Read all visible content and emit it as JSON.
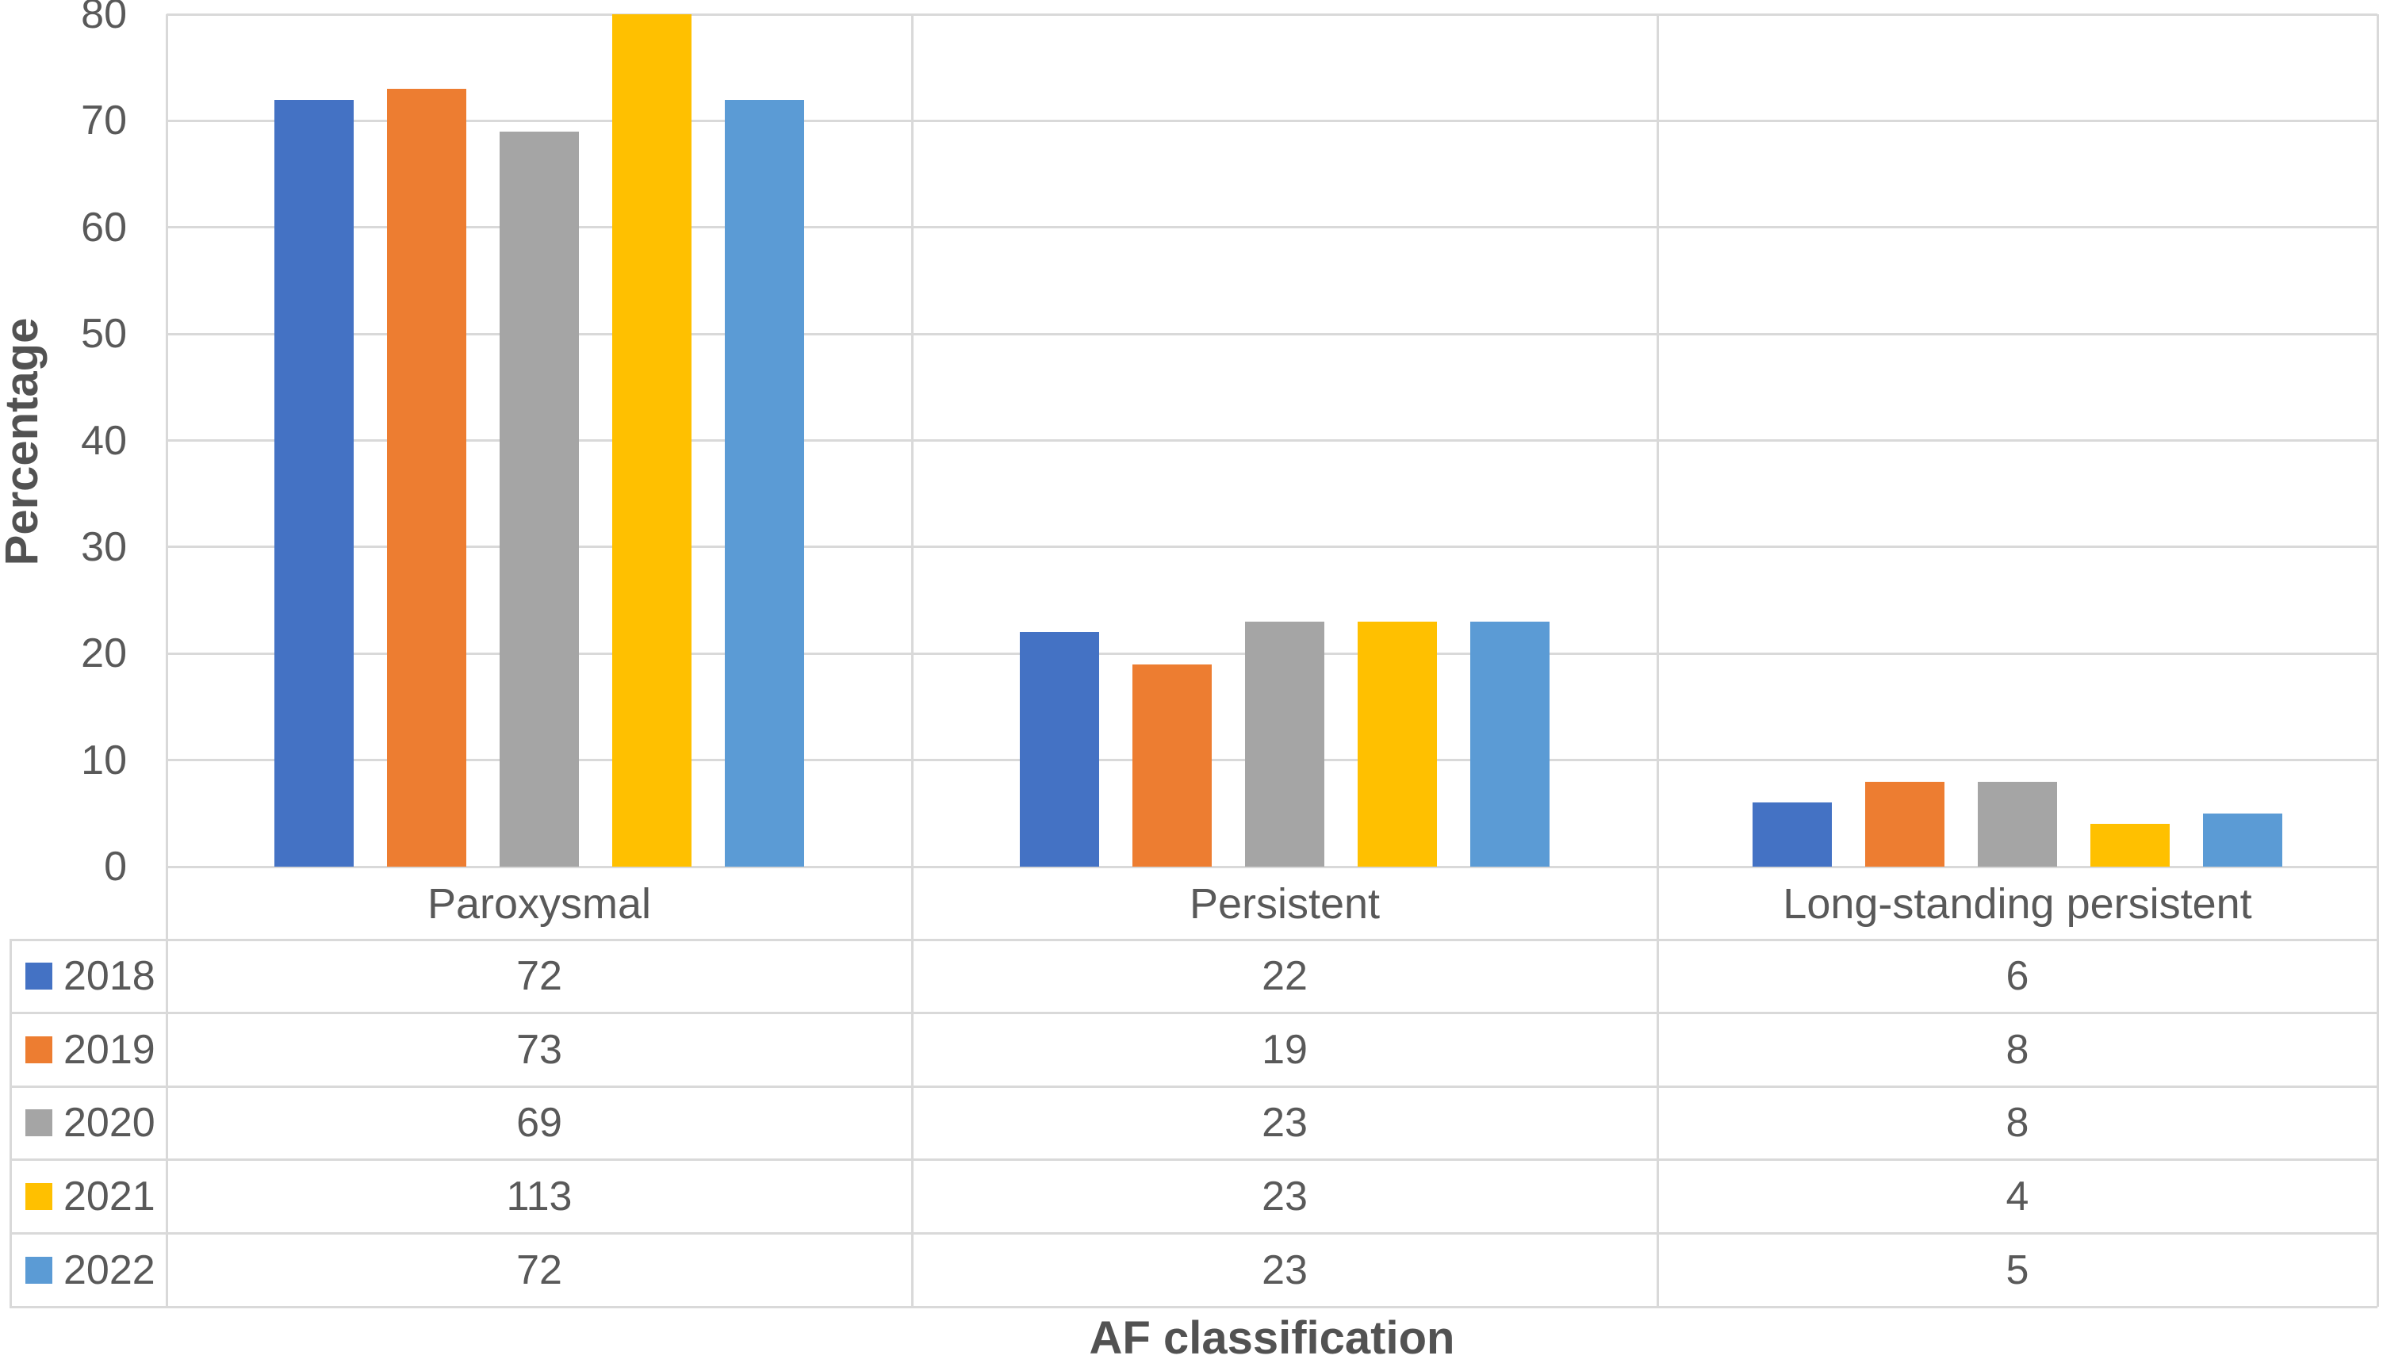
{
  "chart_data": {
    "type": "bar",
    "title": "",
    "xlabel": "AF classification",
    "ylabel": "Percentage",
    "categories": [
      "Paroxysmal",
      "Persistent",
      "Long-standing persistent"
    ],
    "series": [
      {
        "name": "2018",
        "color": "#4472C4",
        "values": [
          72,
          22,
          6
        ]
      },
      {
        "name": "2019",
        "color": "#ED7D31",
        "values": [
          73,
          19,
          8
        ]
      },
      {
        "name": "2020",
        "color": "#A5A5A5",
        "values": [
          69,
          23,
          8
        ]
      },
      {
        "name": "2021",
        "color": "#FFC000",
        "values": [
          113,
          23,
          4
        ]
      },
      {
        "name": "2022",
        "color": "#5B9BD5",
        "values": [
          72,
          23,
          5
        ]
      }
    ],
    "ylim": [
      0,
      80
    ],
    "ytick_step": 10,
    "yticks": [
      0,
      10,
      20,
      30,
      40,
      50,
      60,
      70,
      80
    ],
    "grid": true,
    "bars_clipped_at_ymax": true,
    "legend_position": "table-row-headers",
    "data_table_shown": true
  },
  "colors": {
    "grid": "#D9D9D9",
    "text": "#595959",
    "axis_title_text": "#525252",
    "background": "#FFFFFF"
  }
}
